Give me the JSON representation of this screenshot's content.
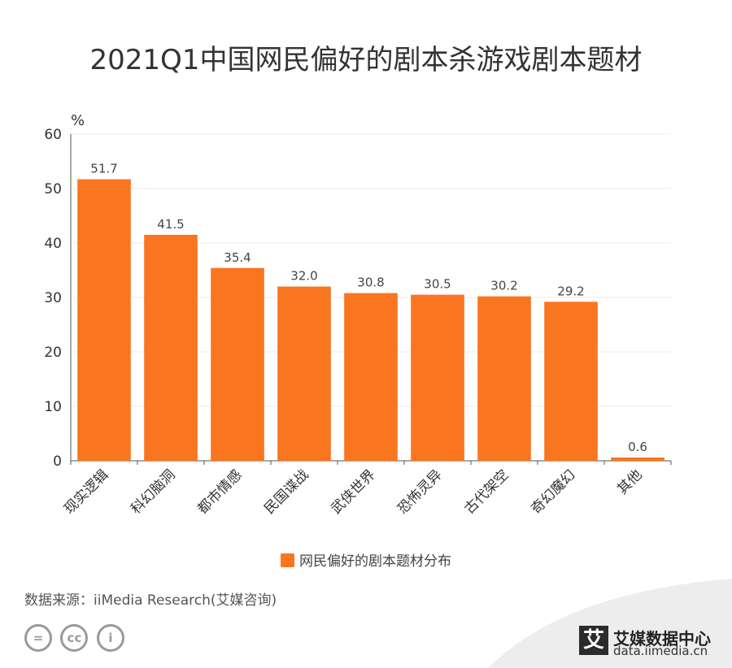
{
  "chart_data": {
    "type": "bar",
    "title": "2021Q1中国网民偏好的剧本杀游戏剧本题材",
    "ylabel": "%",
    "xlabel": "",
    "ylim": [
      0,
      60
    ],
    "yticks": [
      0,
      10,
      20,
      30,
      40,
      50,
      60
    ],
    "grid": true,
    "legend_position": "bottom",
    "categories": [
      "现实逻辑",
      "科幻脑洞",
      "都市情感",
      "民国谍战",
      "武侠世界",
      "恐怖灵异",
      "古代架空",
      "奇幻魔幻",
      "其他"
    ],
    "series": [
      {
        "name": "网民偏好的剧本题材分布",
        "values": [
          51.7,
          41.5,
          35.4,
          32.0,
          30.8,
          30.5,
          30.2,
          29.2,
          0.6
        ],
        "labels": [
          "51.7",
          "41.5",
          "35.4",
          "32.0",
          "30.8",
          "30.5",
          "30.2",
          "29.2",
          "0.6"
        ]
      }
    ]
  },
  "source_text": "数据来源：iiMedia Research(艾媒咨询)",
  "license_icons": [
    {
      "icon": "equals-icon",
      "glyph": "="
    },
    {
      "icon": "cc-icon",
      "glyph": "cc"
    },
    {
      "icon": "person-icon",
      "glyph": "i"
    }
  ],
  "brand": {
    "mark": "艾",
    "name": "艾媒数据中心",
    "url": "data.iimedia.cn"
  },
  "colors": {
    "bar": "#FA7520",
    "axis": "#555555",
    "grid": "#EBEBEB",
    "brand_band": "#EDEDED"
  }
}
